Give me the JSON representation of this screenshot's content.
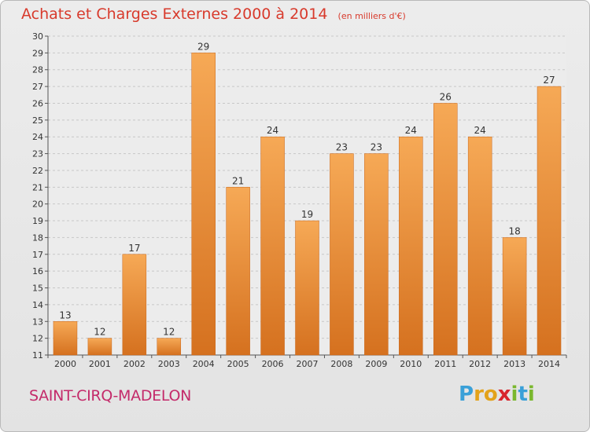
{
  "header": {
    "title": "Achats et Charges Externes 2000 à 2014",
    "unit": "(en milliers d'€)"
  },
  "footer": {
    "commune": "SAINT-CIRQ-MADELON",
    "logo_letters": [
      "P",
      "r",
      "o",
      "x",
      "i",
      "t",
      "i"
    ],
    "logo_colors": [
      "#3aa0d8",
      "#e3a21a",
      "#e3a21a",
      "#d8252c",
      "#7ab82e",
      "#3aa0d8",
      "#7ab82e"
    ]
  },
  "colors": {
    "bar_light": "#f6a956",
    "bar_dark": "#d5711f",
    "title": "#d83a2c",
    "commune": "#c42a6a"
  },
  "chart_data": {
    "type": "bar",
    "title": "Achats et Charges Externes 2000 à 2014",
    "subtitle": "(en milliers d'€)",
    "categories": [
      "2000",
      "2001",
      "2002",
      "2003",
      "2004",
      "2005",
      "2006",
      "2007",
      "2008",
      "2009",
      "2010",
      "2011",
      "2012",
      "2013",
      "2014"
    ],
    "values": [
      13,
      12,
      17,
      12,
      29,
      21,
      24,
      19,
      23,
      23,
      24,
      26,
      24,
      18,
      27
    ],
    "ylim": [
      11,
      30
    ],
    "yticks": [
      11,
      12,
      13,
      14,
      15,
      16,
      17,
      18,
      19,
      20,
      21,
      22,
      23,
      24,
      25,
      26,
      27,
      28,
      29,
      30
    ],
    "grid": true,
    "xlabel": "",
    "ylabel": ""
  }
}
